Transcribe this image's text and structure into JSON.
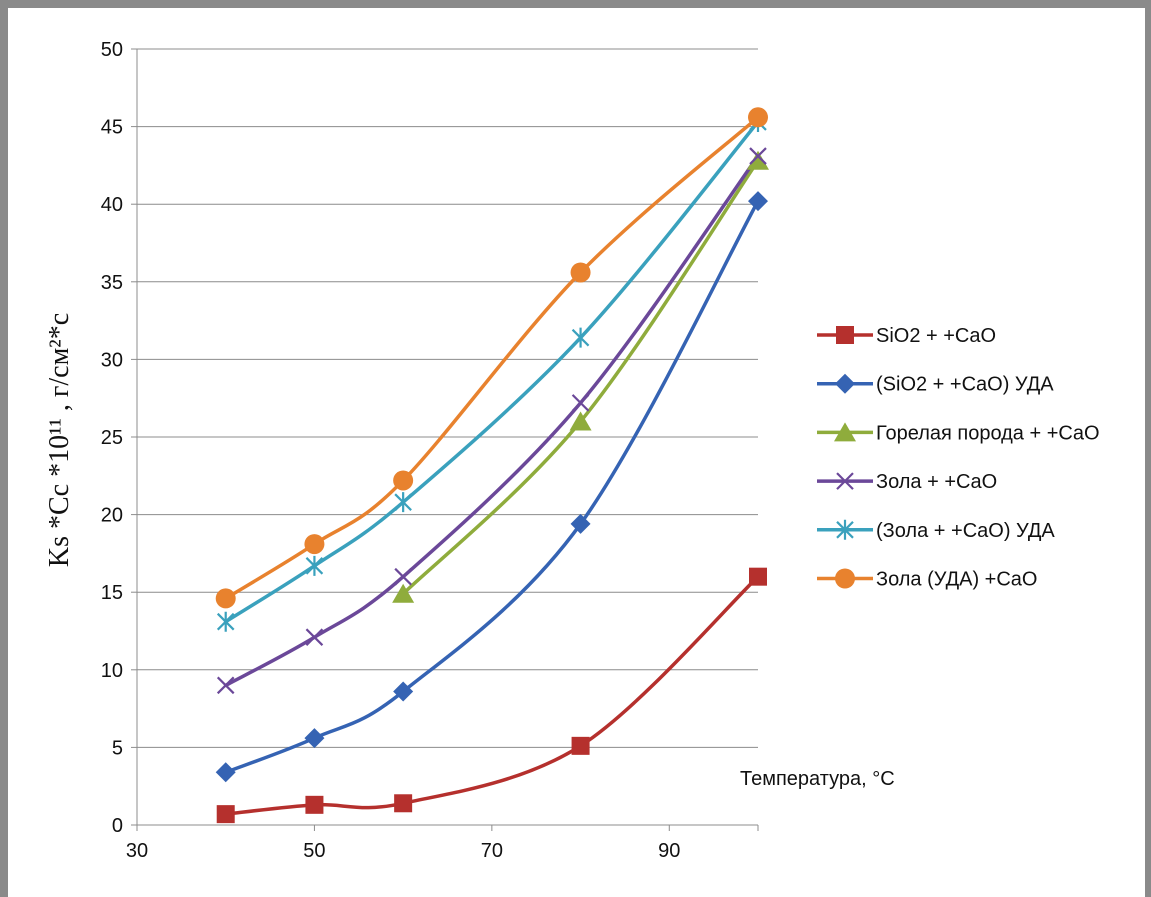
{
  "chart_data": {
    "type": "line",
    "title": "",
    "xlabel": "Температура, °С",
    "ylabel": "Ks *Cc *10¹¹ , г/см²*с",
    "xlim": [
      30,
      100
    ],
    "ylim": [
      0,
      50
    ],
    "x_ticks": [
      "30",
      "50",
      "70",
      "90"
    ],
    "y_ticks": [
      "0",
      "5",
      "10",
      "15",
      "20",
      "25",
      "30",
      "35",
      "40",
      "45",
      "50"
    ],
    "grid": "horizontal",
    "legend": "right",
    "smooth": true,
    "series": [
      {
        "name": "SiO2 + +CaO",
        "color": "#b5302d",
        "marker": "square",
        "x": [
          40,
          50,
          60,
          80,
          100
        ],
        "y": [
          0.7,
          1.3,
          1.4,
          5.1,
          16.0
        ]
      },
      {
        "name": "(SiO2 + +CaO) УДА",
        "color": "#3563b3",
        "marker": "diamond",
        "x": [
          40,
          50,
          60,
          80,
          100
        ],
        "y": [
          3.4,
          5.6,
          8.6,
          19.4,
          40.2
        ]
      },
      {
        "name": "Горелая порода + +CaO",
        "color": "#8fac3c",
        "marker": "triangle",
        "x": [
          60,
          80,
          100
        ],
        "y": [
          14.9,
          26.0,
          42.8
        ]
      },
      {
        "name": "Зола + +CaO",
        "color": "#6b4899",
        "marker": "x",
        "x": [
          40,
          50,
          60,
          80,
          100
        ],
        "y": [
          9.0,
          12.1,
          16.0,
          27.2,
          43.1
        ]
      },
      {
        "name": "(Зола + +CaO) УДА",
        "color": "#3aa1bd",
        "marker": "star",
        "x": [
          40,
          50,
          60,
          80,
          100
        ],
        "y": [
          13.1,
          16.7,
          20.8,
          31.4,
          45.3
        ]
      },
      {
        "name": "Зола (УДА)  +CaO",
        "color": "#e8822e",
        "marker": "circle",
        "x": [
          40,
          50,
          60,
          80,
          100
        ],
        "y": [
          14.6,
          18.1,
          22.2,
          35.6,
          45.6
        ]
      }
    ]
  }
}
